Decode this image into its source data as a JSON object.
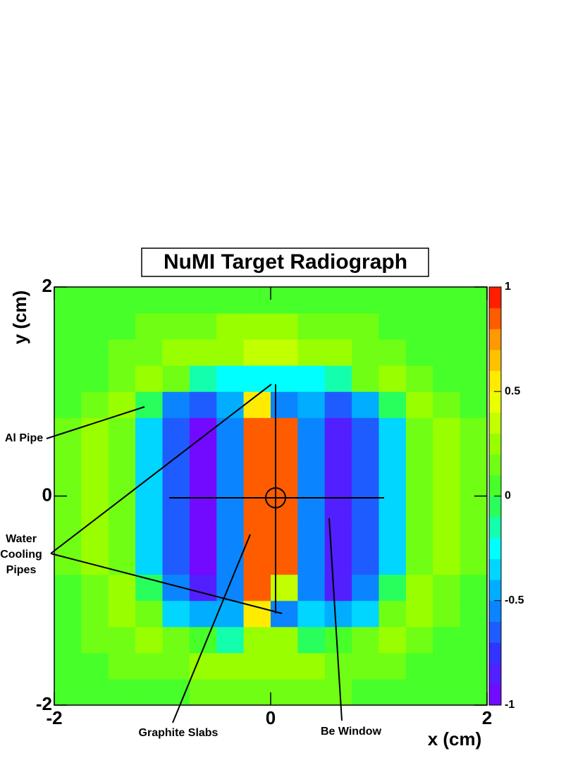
{
  "chart_data": {
    "type": "heatmap",
    "title": "NuMI Target Radiograph",
    "xlabel": "x  (cm)",
    "ylabel": "y  (cm)",
    "xlim": [
      -2,
      2
    ],
    "ylim": [
      -2,
      2
    ],
    "xticks": [
      -2,
      0,
      2
    ],
    "yticks": [
      -2,
      0,
      2
    ],
    "zlim": [
      -1,
      1
    ],
    "zticks": [
      -1,
      -0.5,
      0,
      0.5,
      1
    ],
    "colormap": [
      "#8000ff",
      "#3333ff",
      "#0099ff",
      "#00ffff",
      "#33ff33",
      "#99ff00",
      "#ffff00",
      "#ff9900",
      "#ff0000"
    ],
    "xbins": [
      -2,
      -1.75,
      -1.5,
      -1.25,
      -1,
      -0.75,
      -0.5,
      -0.25,
      0,
      0.25,
      0.5,
      0.75,
      1,
      1.25,
      1.5,
      1.75,
      2
    ],
    "ybins": [
      -2,
      -1.75,
      -1.5,
      -1.25,
      -1,
      -0.75,
      -0.5,
      -0.25,
      0,
      0.25,
      0.5,
      0.75,
      1,
      1.25,
      1.5,
      1.75,
      2
    ],
    "z": [
      [
        0,
        0,
        0,
        0,
        0,
        0.1,
        0.1,
        0.1,
        0.1,
        0.1,
        0.1,
        0,
        0,
        0,
        0,
        0
      ],
      [
        0,
        0,
        0.1,
        0.1,
        0.1,
        0.2,
        0.2,
        0.2,
        0.2,
        0.2,
        0.1,
        0.1,
        0.1,
        0,
        0,
        0
      ],
      [
        0,
        0.1,
        0.1,
        0.2,
        0.1,
        0,
        -0.2,
        0.2,
        0.2,
        -0.1,
        0,
        0.1,
        0.2,
        0.1,
        0,
        0
      ],
      [
        0,
        0.1,
        0.2,
        0.1,
        -0.4,
        -0.5,
        -0.5,
        0.5,
        -0.6,
        -0.4,
        -0.5,
        -0.4,
        0.1,
        0.2,
        0.1,
        0
      ],
      [
        0,
        0.1,
        0.2,
        -0.1,
        -0.6,
        -0.8,
        -0.6,
        0.8,
        0.3,
        -0.6,
        -0.8,
        -0.6,
        -0.1,
        0.2,
        0.1,
        0
      ],
      [
        0.1,
        0.2,
        0.1,
        -0.4,
        -0.7,
        -0.9,
        -0.6,
        0.85,
        0.85,
        -0.6,
        -0.85,
        -0.7,
        -0.4,
        0.1,
        0.2,
        0.1
      ],
      [
        0.1,
        0.2,
        0.1,
        -0.4,
        -0.7,
        -0.9,
        -0.6,
        0.85,
        0.85,
        -0.6,
        -0.85,
        -0.7,
        -0.4,
        0.1,
        0.2,
        0.1
      ],
      [
        0.1,
        0.2,
        0.1,
        -0.4,
        -0.7,
        -0.9,
        -0.6,
        0.85,
        0.85,
        -0.6,
        -0.85,
        -0.7,
        -0.4,
        0.1,
        0.2,
        0.1
      ],
      [
        0.1,
        0.2,
        0.1,
        -0.4,
        -0.7,
        -0.9,
        -0.6,
        0.85,
        0.85,
        -0.6,
        -0.85,
        -0.7,
        -0.4,
        0.1,
        0.2,
        0.1
      ],
      [
        0.1,
        0.2,
        0.1,
        -0.4,
        -0.7,
        -0.9,
        -0.6,
        0.85,
        0.85,
        -0.6,
        -0.85,
        -0.7,
        -0.4,
        0.1,
        0.2,
        0.1
      ],
      [
        0.1,
        0.2,
        0.1,
        -0.4,
        -0.7,
        -0.9,
        -0.6,
        0.85,
        0.85,
        -0.6,
        -0.85,
        -0.7,
        -0.4,
        0.1,
        0.2,
        0.1
      ],
      [
        0,
        0.1,
        0.2,
        -0.1,
        -0.6,
        -0.7,
        -0.5,
        0.5,
        -0.6,
        -0.5,
        -0.7,
        -0.5,
        -0.1,
        0.2,
        0.1,
        0
      ],
      [
        0,
        0,
        0.1,
        0.2,
        0.1,
        -0.2,
        -0.3,
        -0.3,
        -0.3,
        -0.3,
        -0.2,
        0.1,
        0.2,
        0.1,
        0,
        0
      ],
      [
        0,
        0,
        0.1,
        0.1,
        0.2,
        0.2,
        0.2,
        0.3,
        0.3,
        0.2,
        0.2,
        0.1,
        0.1,
        0,
        0,
        0
      ],
      [
        0,
        0,
        0,
        0.1,
        0.1,
        0.1,
        0.2,
        0.2,
        0.2,
        0.1,
        0.1,
        0.1,
        0,
        0,
        0,
        0
      ],
      [
        0,
        0,
        0,
        0,
        0,
        0,
        0,
        0,
        0,
        0,
        0,
        0,
        0,
        0,
        0,
        0
      ]
    ],
    "annotations": [
      [
        "Al Pipe"
      ],
      [
        "Water",
        "Cooling",
        "Pipes"
      ],
      [
        "Graphite Slabs"
      ],
      [
        "Be Window"
      ]
    ]
  }
}
